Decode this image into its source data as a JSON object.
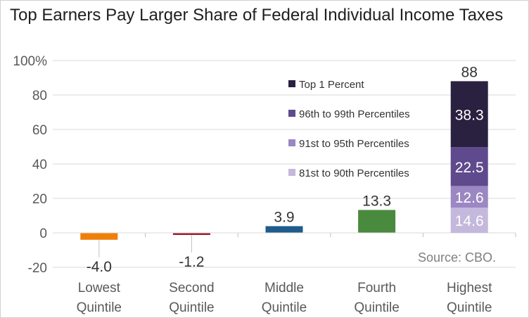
{
  "chart_data": {
    "type": "bar",
    "title": "Top Earners Pay Larger Share of Federal Individual Income Taxes",
    "xlabel": "",
    "ylabel": "",
    "ylim": [
      -20,
      100
    ],
    "y_ticks": [
      -20,
      0,
      20,
      40,
      60,
      80,
      100
    ],
    "y_tick_labels": [
      "-20",
      "0",
      "20",
      "40",
      "60",
      "80",
      "100%"
    ],
    "categories": [
      [
        "Lowest",
        "Quintile"
      ],
      [
        "Second",
        "Quintile"
      ],
      [
        "Middle",
        "Quintile"
      ],
      [
        "Fourth",
        "Quintile"
      ],
      [
        "Highest",
        "Quintile"
      ]
    ],
    "bars": [
      {
        "value": -4.0,
        "label": "-4.0",
        "color": "#f07f09"
      },
      {
        "value": -1.2,
        "label": "-1.2",
        "color": "#9b1c31"
      },
      {
        "value": 3.9,
        "label": "3.9",
        "color": "#1f5c8b"
      },
      {
        "value": 13.3,
        "label": "13.3",
        "color": "#4a8a3e"
      }
    ],
    "stacked": {
      "category_index": 4,
      "total_label": "88",
      "segments": [
        {
          "name": "81st to 90th  Percentiles",
          "value": 14.6,
          "label": "14.6",
          "color": "#c4b8dc"
        },
        {
          "name": "91st to 95th Percentiles",
          "value": 12.6,
          "label": "12.6",
          "color": "#9b87c2"
        },
        {
          "name": "96th to 99th Percentiles",
          "value": 22.5,
          "label": "22.5",
          "color": "#5e4a8c"
        },
        {
          "name": "Top 1 Percent",
          "value": 38.3,
          "label": "38.3",
          "color": "#2a2140"
        }
      ]
    },
    "legend": {
      "placement": "top-center",
      "order": [
        "Top 1 Percent",
        "96th to 99th Percentiles",
        "91st to 95th Percentiles",
        "81st to 90th  Percentiles"
      ]
    },
    "source": "Source: CBO.",
    "grid": true,
    "colors": {
      "grid": "#d9d9d9",
      "axis_text": "#595959"
    }
  }
}
